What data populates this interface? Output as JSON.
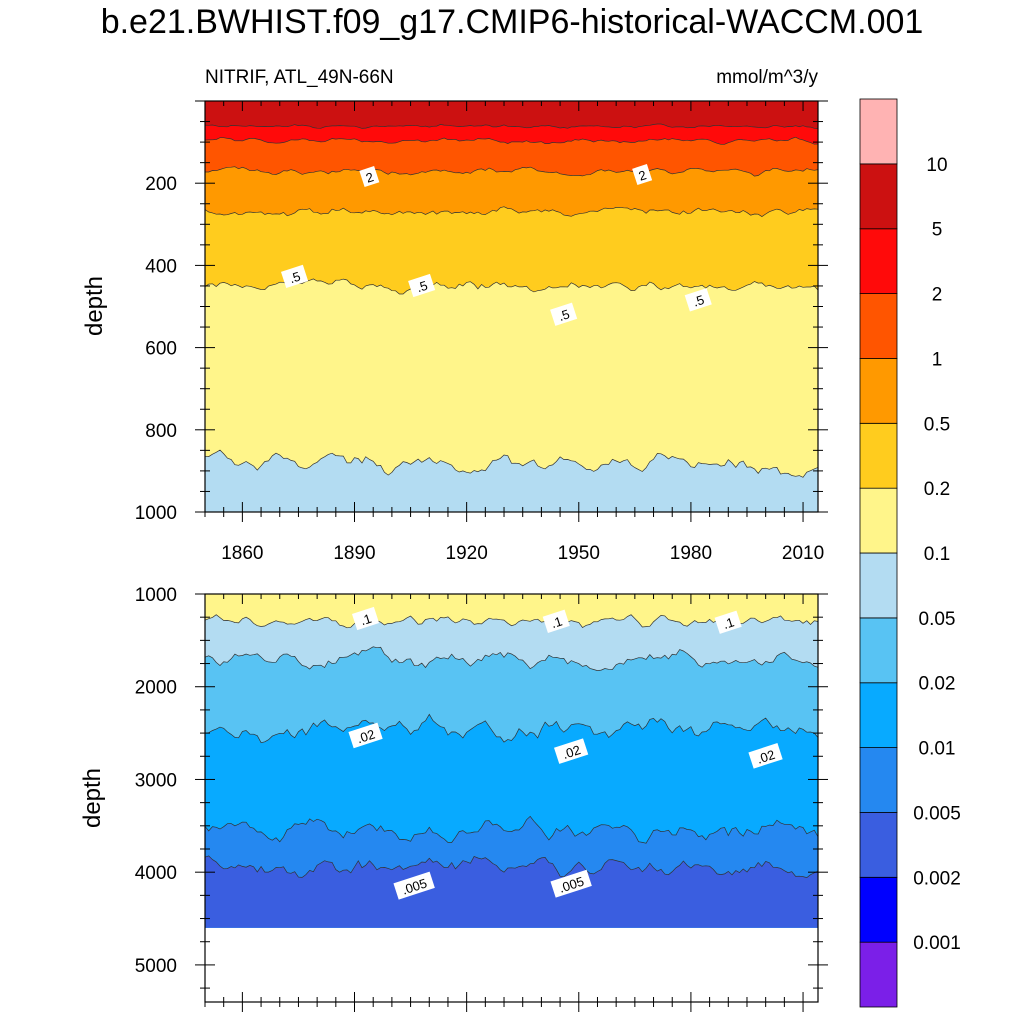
{
  "title": "b.e21.BWHIST.f09_g17.CMIP6-historical-WACCM.001",
  "left_subtitle": "NITRIF, ATL_49N-66N",
  "right_subtitle": "mmol/m^3/y",
  "colorbar": {
    "levels": [
      "0.001",
      "0.002",
      "0.005",
      "0.01",
      "0.02",
      "0.05",
      "0.1",
      "0.2",
      "0.5",
      "1",
      "2",
      "5",
      "10"
    ],
    "colors": [
      "#7b1fe8",
      "#0000ff",
      "#3a5ee0",
      "#2588f0",
      "#08aaff",
      "#58c3f3",
      "#b3dcf2",
      "#fff58a",
      "#ffcc1e",
      "#ff9900",
      "#ff5500",
      "#ff0a0a",
      "#cc1111",
      "#ffb3b3"
    ]
  },
  "chart_data": [
    {
      "type": "heatmap",
      "subtype": "filled-contour",
      "panel": "upper",
      "xlabel": "",
      "ylabel": "depth",
      "xlim": [
        1850,
        2014
      ],
      "ylim": [
        1000,
        0
      ],
      "xticks": [
        "1860",
        "1890",
        "1920",
        "1950",
        "1980",
        "2010"
      ],
      "yticks": [
        "200",
        "400",
        "600",
        "800",
        "1000"
      ],
      "contour_depths": [
        {
          "level": 5,
          "mean_depth": 62
        },
        {
          "level": 2,
          "mean_depth": 97
        },
        {
          "level": 1,
          "mean_depth": 170
        },
        {
          "level": 0.5,
          "mean_depth": 270
        },
        {
          "level": 0.2,
          "mean_depth": 450
        },
        {
          "level": 0.1,
          "mean_depth": 880
        }
      ],
      "contour_labels": [
        {
          "text": "2",
          "x": 1894,
          "depth": 185
        },
        {
          "text": "2",
          "x": 1967,
          "depth": 180
        },
        {
          "text": ".5",
          "x": 1874,
          "depth": 428
        },
        {
          "text": ".5",
          "x": 1908,
          "depth": 450
        },
        {
          "text": ".5",
          "x": 1946,
          "depth": 520
        },
        {
          "text": ".5",
          "x": 1982,
          "depth": 485
        }
      ]
    },
    {
      "type": "heatmap",
      "subtype": "filled-contour",
      "panel": "lower",
      "xlabel": "",
      "ylabel": "depth",
      "xlim": [
        1850,
        2014
      ],
      "ylim": [
        5400,
        1000
      ],
      "xticks": [
        "1860",
        "1890",
        "1920",
        "1950",
        "1980",
        "2010"
      ],
      "yticks": [
        "1000",
        "2000",
        "3000",
        "4000",
        "5000"
      ],
      "bottom_depth": 4600,
      "contour_depths": [
        {
          "level": 0.1,
          "mean_depth": 1300
        },
        {
          "level": 0.05,
          "mean_depth": 1700
        },
        {
          "level": 0.02,
          "mean_depth": 2450
        },
        {
          "level": 0.01,
          "mean_depth": 3550
        },
        {
          "level": 0.005,
          "mean_depth": 3950
        }
      ],
      "contour_labels": [
        {
          "text": ".1",
          "x": 1893,
          "depth": 1270
        },
        {
          "text": ".1",
          "x": 1944,
          "depth": 1300
        },
        {
          "text": ".1",
          "x": 1990,
          "depth": 1310
        },
        {
          "text": ".02",
          "x": 1893,
          "depth": 2530
        },
        {
          "text": ".02",
          "x": 1948,
          "depth": 2700
        },
        {
          "text": ".02",
          "x": 2000,
          "depth": 2750
        },
        {
          "text": ".005",
          "x": 1906,
          "depth": 4150
        },
        {
          "text": ".005",
          "x": 1948,
          "depth": 4130
        }
      ]
    }
  ]
}
